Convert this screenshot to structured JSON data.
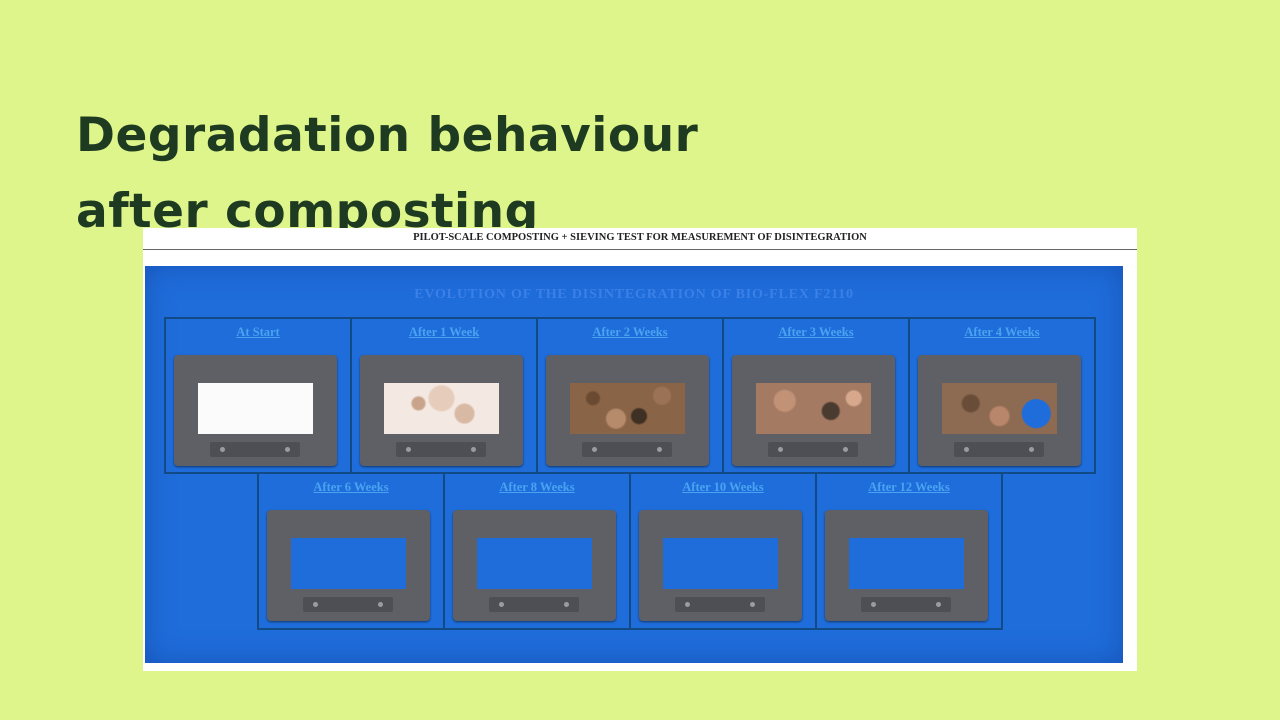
{
  "slide": {
    "title_line1": "Degradation behaviour",
    "title_line2": "after composting"
  },
  "document": {
    "header": "PILOT-SCALE COMPOSTING + SIEVING TEST FOR MEASUREMENT OF DISINTEGRATION",
    "panel_title": "EVOLUTION OF THE DISINTEGRATION OF BIO-FLEX F2110",
    "stages": [
      {
        "label": "At Start"
      },
      {
        "label": "After 1 Week"
      },
      {
        "label": "After 2 Weeks"
      },
      {
        "label": "After 3 Weeks"
      },
      {
        "label": "After 4 Weeks"
      },
      {
        "label": "After 6 Weeks"
      },
      {
        "label": "After 8 Weeks"
      },
      {
        "label": "After 10 Weeks"
      },
      {
        "label": "After 12 Weeks"
      }
    ]
  },
  "colors": {
    "background": "#def58b",
    "title": "#1e3b22",
    "panel_blue": "#1f6ddb",
    "label_blue": "#4aa3f0"
  }
}
